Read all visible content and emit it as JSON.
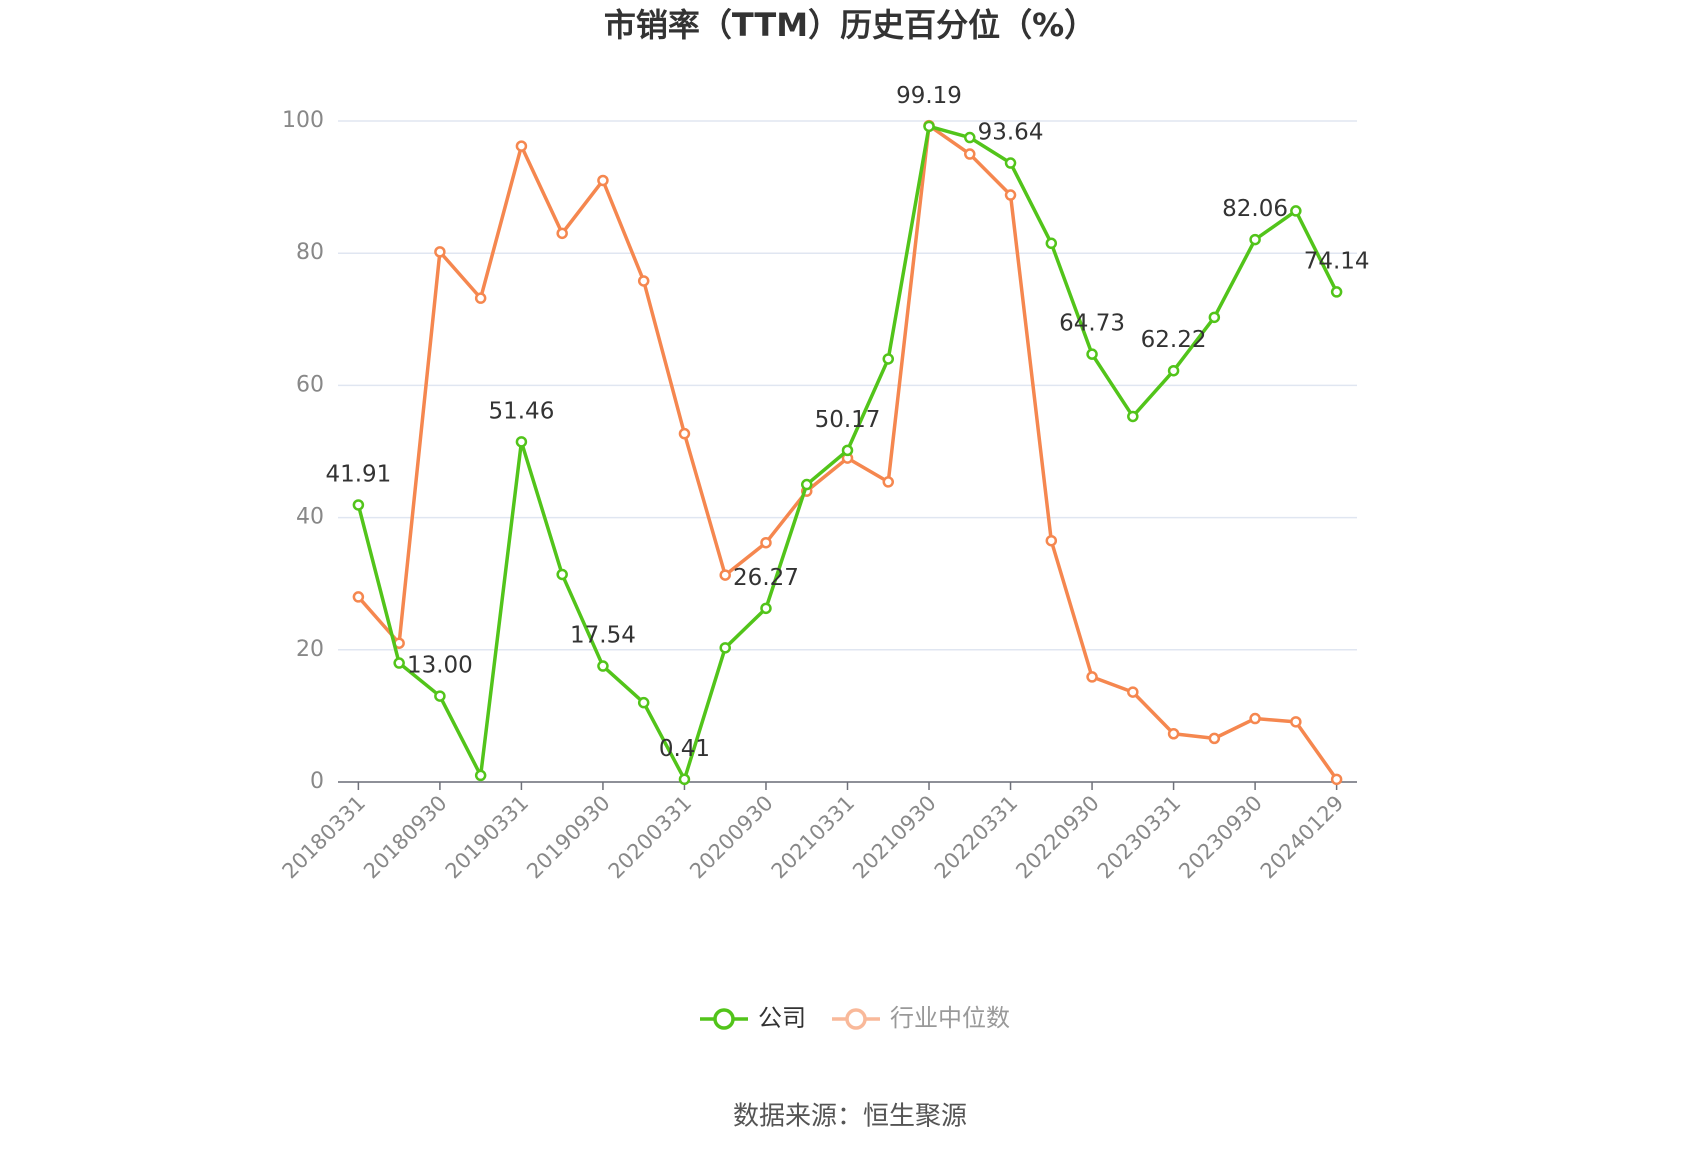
{
  "chart_data": {
    "type": "line",
    "title": "市销率（TTM）历史百分位（%）",
    "source": "数据来源：恒生聚源",
    "categories": [
      "20180331",
      null,
      "20180930",
      null,
      "20190331",
      null,
      "20190930",
      null,
      "20200331",
      null,
      "20200930",
      null,
      "20210331",
      null,
      "20210930",
      null,
      "20220331",
      null,
      "20220930",
      null,
      "20230331",
      null,
      "20230930",
      null,
      "20240129"
    ],
    "series": [
      {
        "name": "公司",
        "color": "#52c41a",
        "values": [
          41.91,
          18.0,
          13.0,
          1.0,
          51.46,
          31.4,
          17.54,
          12.0,
          0.41,
          20.3,
          26.27,
          45.0,
          50.17,
          64.0,
          99.19,
          97.5,
          93.64,
          81.5,
          64.73,
          55.3,
          62.22,
          70.3,
          82.06,
          86.4,
          74.14
        ],
        "value_labels": [
          "41.91",
          null,
          "13.00",
          null,
          "51.46",
          null,
          "17.54",
          null,
          "0.41",
          null,
          "26.27",
          null,
          "50.17",
          null,
          "99.19",
          null,
          "93.64",
          null,
          "64.73",
          null,
          "62.22",
          null,
          "82.06",
          null,
          "74.14"
        ]
      },
      {
        "name": "行业中位数",
        "color": "#f5874f",
        "values": [
          28.0,
          21.0,
          80.2,
          73.2,
          96.2,
          83.0,
          91.0,
          75.8,
          52.7,
          31.3,
          36.2,
          44.0,
          49.0,
          45.4,
          99.3,
          95.0,
          88.8,
          36.5,
          15.9,
          13.6,
          7.3,
          6.6,
          9.6,
          9.1,
          0.4
        ]
      }
    ],
    "ylim": [
      0,
      100
    ],
    "yticks": [
      0,
      20,
      40,
      60,
      80,
      100
    ],
    "grid": true
  }
}
